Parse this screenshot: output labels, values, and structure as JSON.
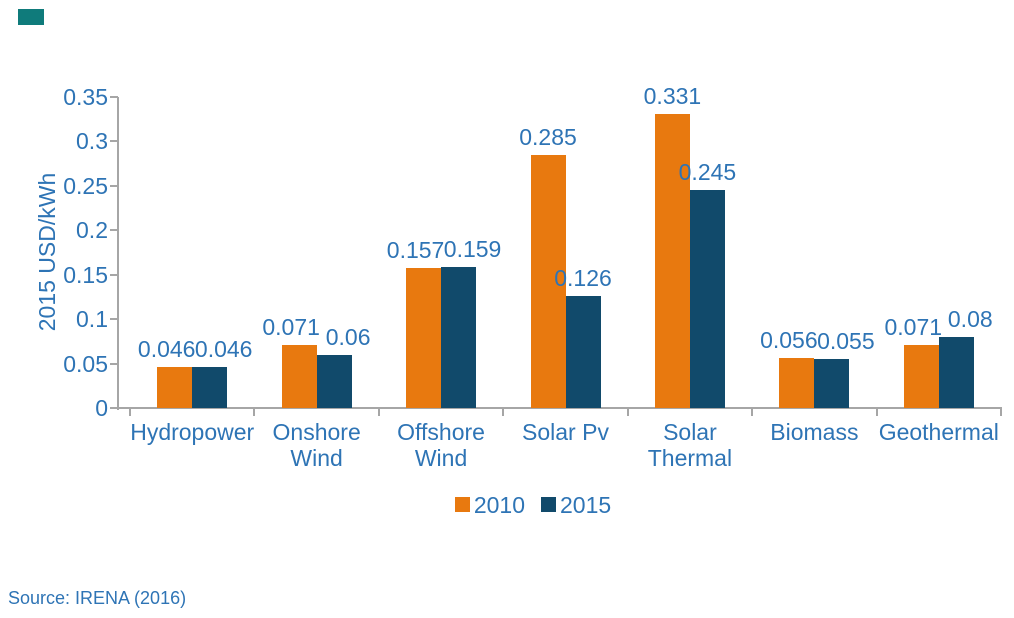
{
  "page": {
    "background": "#ffffff",
    "text_color": "#2e74b5"
  },
  "corner_mark": {
    "color": "#0f7b7b"
  },
  "chart_data": {
    "type": "bar",
    "categories": [
      "Hydropower",
      "Onshore Wind",
      "Offshore Wind",
      "Solar Pv",
      "Solar Thermal",
      "Biomass",
      "Geothermal"
    ],
    "series": [
      {
        "name": "2010",
        "color": "#e8790f",
        "values": [
          0.046,
          0.071,
          0.157,
          0.285,
          0.331,
          0.056,
          0.071
        ],
        "labels": [
          "0.046",
          "0.071",
          "0.157",
          "0.285",
          "0.331",
          "0.056",
          "0.071"
        ]
      },
      {
        "name": "2015",
        "color": "#114a6b",
        "values": [
          0.046,
          0.06,
          0.159,
          0.126,
          0.245,
          0.055,
          0.08
        ],
        "labels": [
          "0.046",
          "0.06",
          "0.159",
          "0.126",
          "0.245",
          "0.055",
          "0.08"
        ]
      }
    ],
    "title": "",
    "xlabel": "",
    "ylabel": "2015 USD/kWh",
    "ylim": [
      0,
      0.35
    ],
    "yticks": [
      "0",
      "0.05",
      "0.1",
      "0.15",
      "0.2",
      "0.25",
      "0.3",
      "0.35"
    ],
    "grid": false,
    "legend_position": "bottom-center",
    "axis_color": "#a6a6a6",
    "text_color": "#2e74b5"
  },
  "footer": {
    "source": "Source: IRENA (2016)"
  }
}
